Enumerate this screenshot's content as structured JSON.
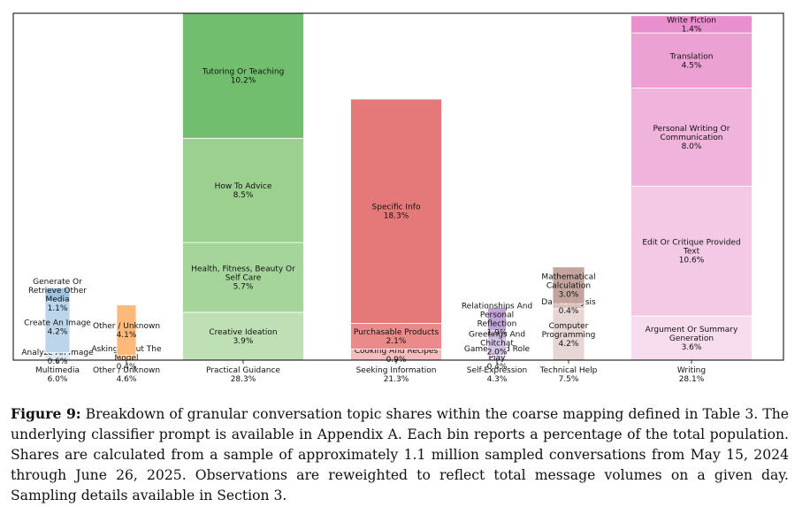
{
  "chart_data": {
    "type": "stacked_bar",
    "bars": [
      {
        "category": "Multimedia",
        "total": "6.0%",
        "color": "#a7c7e7",
        "segments": [
          {
            "label": "Analyze An Image",
            "value": 0.6,
            "text": "0.6%",
            "color": "#dbe8f4"
          },
          {
            "label": "Create An Image",
            "value": 4.2,
            "text": "4.2%",
            "color": "#bcd5eb"
          },
          {
            "label": "Generate Or Retrieve Other Media",
            "value": 1.1,
            "text": "1.1%",
            "color": "#9fc2e0"
          }
        ]
      },
      {
        "category": "Other / Unknown",
        "total": "4.6%",
        "segments": [
          {
            "label": "Asking About The Model",
            "value": 0.4,
            "text": "0.4%",
            "color": "#fdd9b0"
          },
          {
            "label": "Other / Unknown",
            "value": 4.1,
            "text": "4.1%",
            "color": "#fdb97a"
          }
        ]
      },
      {
        "category": "Practical Guidance",
        "total": "28.3%",
        "segments": [
          {
            "label": "Creative Ideation",
            "value": 3.9,
            "text": "3.9%",
            "color": "#bfe0b5"
          },
          {
            "label": "Health, Fitness, Beauty Or Self Care",
            "value": 5.7,
            "text": "5.7%",
            "color": "#a5d59a"
          },
          {
            "label": "How To Advice",
            "value": 8.5,
            "text": "8.5%",
            "color": "#9bd08e"
          },
          {
            "label": "Tutoring Or Teaching",
            "value": 10.2,
            "text": "10.2%",
            "color": "#71bf6e"
          }
        ]
      },
      {
        "category": "Seeking Information",
        "total": "21.3%",
        "segments": [
          {
            "label": "Cooking And Recipes",
            "value": 0.9,
            "text": "0.9%",
            "color": "#f4bcbc"
          },
          {
            "label": "Purchasable Products",
            "value": 2.1,
            "text": "2.1%",
            "color": "#ea8a8a"
          },
          {
            "label": "Specific Info",
            "value": 18.3,
            "text": "18.3%",
            "color": "#e57878"
          }
        ]
      },
      {
        "category": "Self-Expression",
        "total": "4.3%",
        "segments": [
          {
            "label": "Games And Role Play",
            "value": 0.4,
            "text": "0.4%",
            "color": "#ebe1f1"
          },
          {
            "label": "Greetings And Chitchat",
            "value": 2.0,
            "text": "2.0%",
            "color": "#d3c2e4"
          },
          {
            "label": "Relationships And Personal Reflection",
            "value": 1.9,
            "text": "1.9%",
            "color": "#bfa5d8"
          }
        ]
      },
      {
        "category": "Technical Help",
        "total": "7.5%",
        "segments": [
          {
            "label": "Computer Programming",
            "value": 4.2,
            "text": "4.2%",
            "color": "#e7d7d4"
          },
          {
            "label": "Data Analysis",
            "value": 0.4,
            "text": "0.4%",
            "color": "#d9c0ba"
          },
          {
            "label": "Mathematical Calculation",
            "value": 3.0,
            "text": "3.0%",
            "color": "#c4a59e"
          }
        ]
      },
      {
        "category": "Writing",
        "total": "28.1%",
        "segments": [
          {
            "label": "Argument Or Summary Generation",
            "value": 3.6,
            "text": "3.6%",
            "color": "#f7dcee"
          },
          {
            "label": "Edit Or Critique Provided Text",
            "value": 10.6,
            "text": "10.6%",
            "color": "#f4c9e6"
          },
          {
            "label": "Personal Writing Or Communication",
            "value": 8.0,
            "text": "8.0%",
            "color": "#efb3dc"
          },
          {
            "label": "Translation",
            "value": 4.5,
            "text": "4.5%",
            "color": "#eca1d5"
          },
          {
            "label": "Write Fiction",
            "value": 1.4,
            "text": "1.4%",
            "color": "#e98fcd"
          }
        ]
      }
    ]
  },
  "caption": {
    "lead": "Figure 9:",
    "text": "Breakdown of granular conversation topic shares within the coarse mapping defined in Table 3. The underlying classifier prompt is available in Appendix A. Each bin reports a percentage of the total population. Shares are calculated from a sample of approximately 1.1 million sampled conversations from May 15, 2024 through June 26, 2025. Observations are reweighted to reflect total message volumes on a given day. Sampling details available in Section 3."
  }
}
